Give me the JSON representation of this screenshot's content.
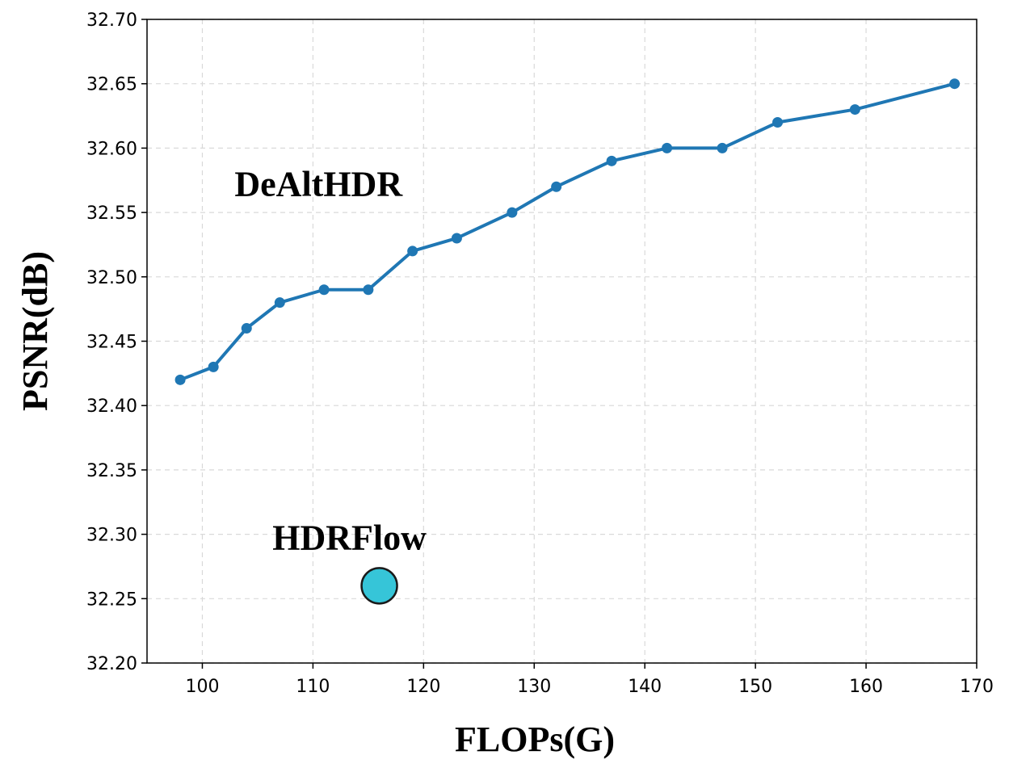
{
  "chart_data": {
    "type": "scatter",
    "xlabel": "FLOPs(G)",
    "ylabel": "PSNR(dB)",
    "xlim": [
      95,
      170
    ],
    "ylim": [
      32.2,
      32.7
    ],
    "xticks": [
      "100",
      "110",
      "120",
      "130",
      "140",
      "150",
      "160",
      "170"
    ],
    "yticks": [
      "32.20",
      "32.25",
      "32.30",
      "32.35",
      "32.40",
      "32.45",
      "32.50",
      "32.55",
      "32.60",
      "32.65",
      "32.70"
    ],
    "grid": true,
    "series": [
      {
        "name": "DeAltHDR",
        "kind": "line",
        "color": "#1f77b4",
        "x": [
          98,
          101,
          104,
          107,
          111,
          115,
          119,
          123,
          128,
          132,
          137,
          142,
          147,
          152,
          159,
          168
        ],
        "y": [
          32.42,
          32.43,
          32.46,
          32.48,
          32.49,
          32.49,
          32.52,
          32.53,
          32.55,
          32.57,
          32.59,
          32.6,
          32.6,
          32.62,
          32.63,
          32.65
        ]
      },
      {
        "name": "HDRFlow",
        "kind": "point",
        "color": "#36c5d8",
        "x": [
          116
        ],
        "y": [
          32.26
        ]
      }
    ],
    "annotations": [
      {
        "text": "DeAltHDR",
        "x": 110.5,
        "y": 32.563
      },
      {
        "text": "HDRFlow",
        "x": 113.3,
        "y": 32.288
      }
    ]
  }
}
